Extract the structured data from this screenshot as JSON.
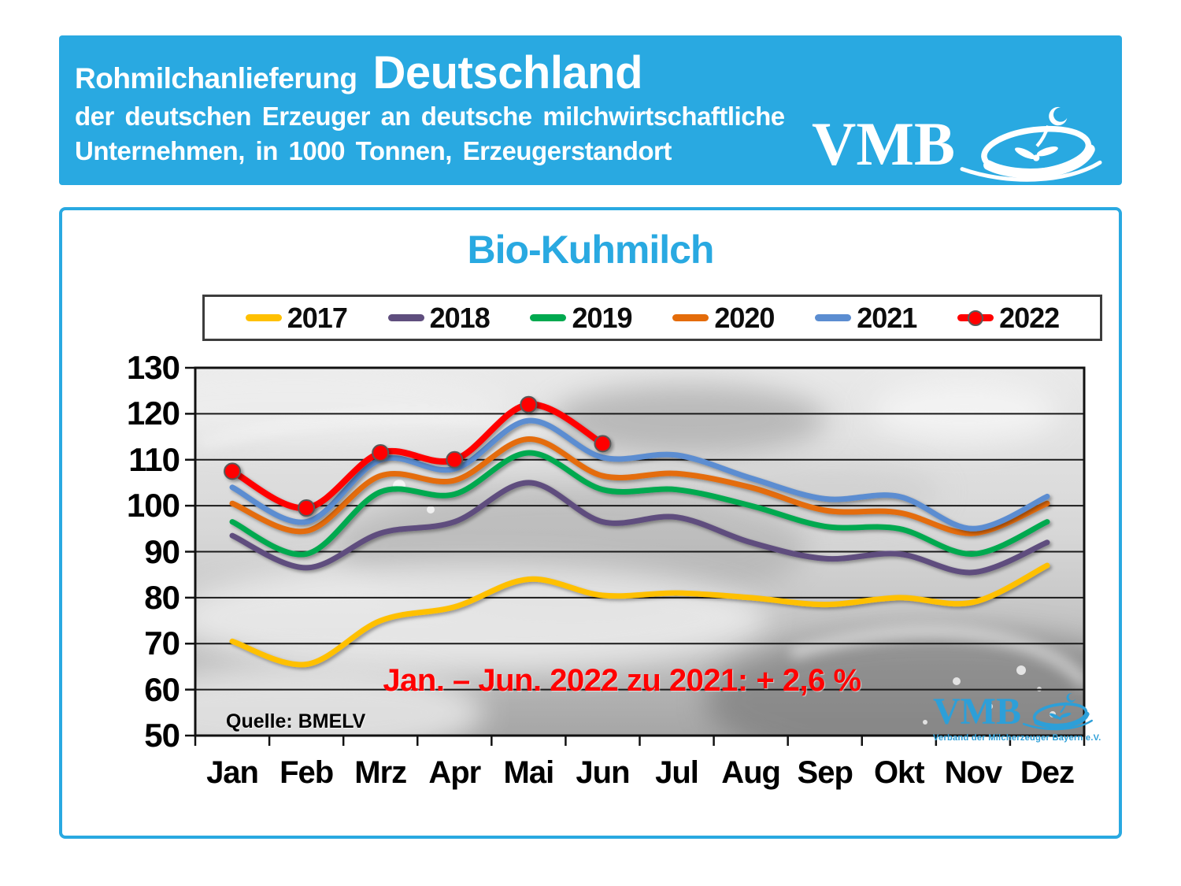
{
  "header": {
    "bg_color": "#29A9E1",
    "title_prefix": "Rohmilchanlieferung",
    "title_main": "Deutschland",
    "subtitle_line1": "der deutschen Erzeuger an deutsche milchwirtschaftliche",
    "subtitle_line2": "Unternehmen, in 1000 Tonnen, Erzeugerstandort",
    "logo": {
      "text": "VMB"
    }
  },
  "chart": {
    "title": "Bio-Kuhmilch",
    "title_color": "#29A9E1",
    "annotation": "Jan. – Jun. 2022 zu 2021: + 2,6 %",
    "annotation_color": "#FF0000",
    "source_label": "Quelle:",
    "source_value": "BMELV",
    "logo": {
      "text": "VMB",
      "subtext": "Verband der Milcherzeuger Bayern e.V."
    }
  },
  "chart_data": {
    "type": "line",
    "title": "Bio-Kuhmilch",
    "xlabel": "",
    "ylabel": "1000 Tonnen",
    "categories": [
      "Jan",
      "Feb",
      "Mrz",
      "Apr",
      "Mai",
      "Jun",
      "Jul",
      "Aug",
      "Sep",
      "Okt",
      "Nov",
      "Dez"
    ],
    "series": [
      {
        "name": "2017",
        "color": "#FFC000",
        "marker": false,
        "values": [
          70.5,
          65.5,
          75,
          78,
          84,
          80.5,
          81,
          80,
          78.5,
          80,
          79,
          87
        ]
      },
      {
        "name": "2018",
        "color": "#5F4E7E",
        "marker": false,
        "values": [
          93.5,
          86.5,
          94,
          96.5,
          105,
          96.5,
          97.5,
          92,
          88.5,
          89.5,
          85.5,
          92
        ]
      },
      {
        "name": "2019",
        "color": "#00A94F",
        "marker": false,
        "values": [
          96.5,
          89.5,
          103,
          102.5,
          111.5,
          103.5,
          103.5,
          100,
          95.5,
          95,
          89.5,
          96.5
        ]
      },
      {
        "name": "2020",
        "color": "#E46C0A",
        "marker": false,
        "values": [
          100.5,
          94.5,
          106.5,
          105.5,
          114.5,
          106.5,
          107,
          104,
          99,
          98.5,
          94,
          100.5
        ]
      },
      {
        "name": "2021",
        "color": "#5B8DD1",
        "marker": false,
        "values": [
          104,
          96.5,
          110,
          108,
          118.5,
          110.5,
          111,
          106,
          101.5,
          102,
          95,
          102
        ]
      },
      {
        "name": "2022",
        "color": "#FF0000",
        "marker": true,
        "values": [
          107.5,
          99.5,
          111.5,
          110,
          122,
          113.5
        ]
      }
    ],
    "ylim": [
      50,
      130
    ],
    "ytick_step": 10,
    "grid": "horizontal",
    "legend_position": "top",
    "smooth": true
  }
}
